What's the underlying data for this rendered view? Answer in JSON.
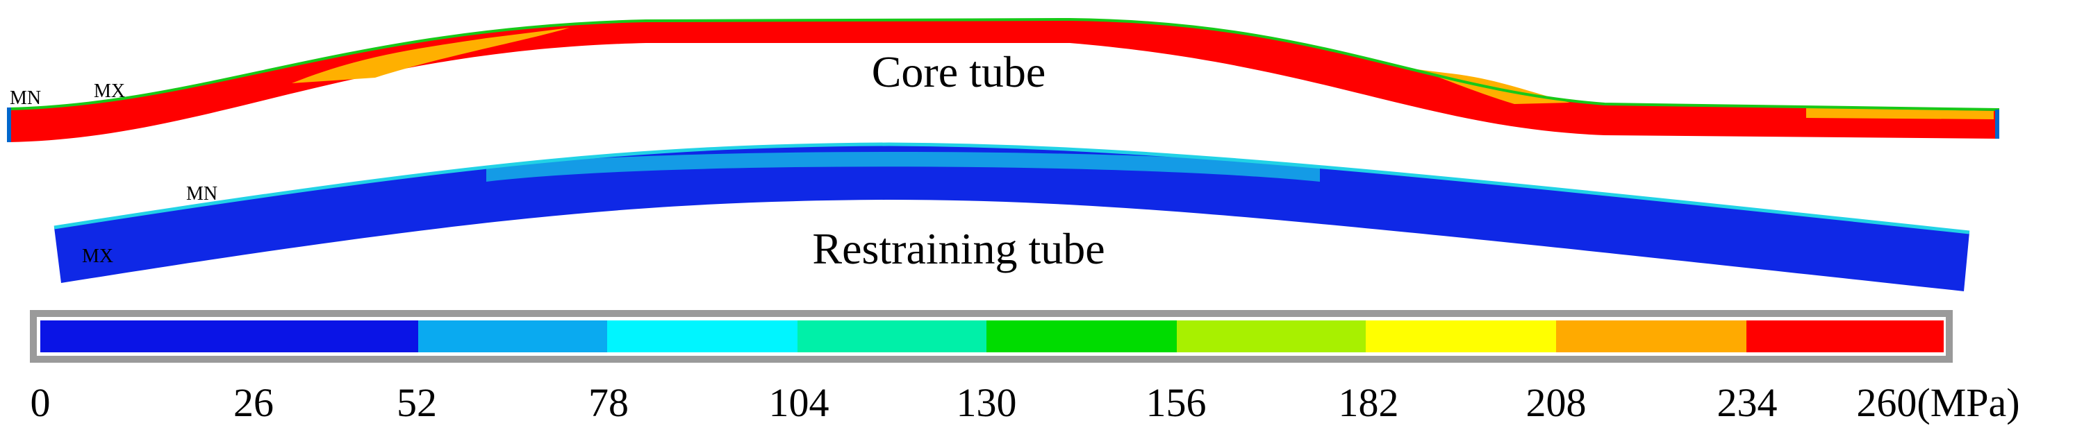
{
  "labels": {
    "core_tube": "Core tube",
    "restraining_tube": "Restraining tube",
    "core_min": "MN",
    "core_max": "MX",
    "restrain_min": "MN",
    "restrain_max": "MX"
  },
  "legend": {
    "ticks": [
      "0",
      "26",
      "52",
      "78",
      "104",
      "130",
      "156",
      "182",
      "208",
      "234",
      "260(MPa)"
    ],
    "colors": [
      "#0a14e6",
      "#0aaaf0",
      "#00f5ff",
      "#00f0a8",
      "#00dc00",
      "#a8f000",
      "#ffff00",
      "#ffaa00",
      "#ff0000"
    ]
  },
  "colors": {
    "core_main": "#ff0000",
    "core_band": "#ffb000",
    "core_edge": "#18c818",
    "restrain_main": "#0f28e6",
    "restrain_band": "#149be6",
    "restrain_edge": "#22d2e6",
    "legend_border": "#9a9a9a"
  }
}
